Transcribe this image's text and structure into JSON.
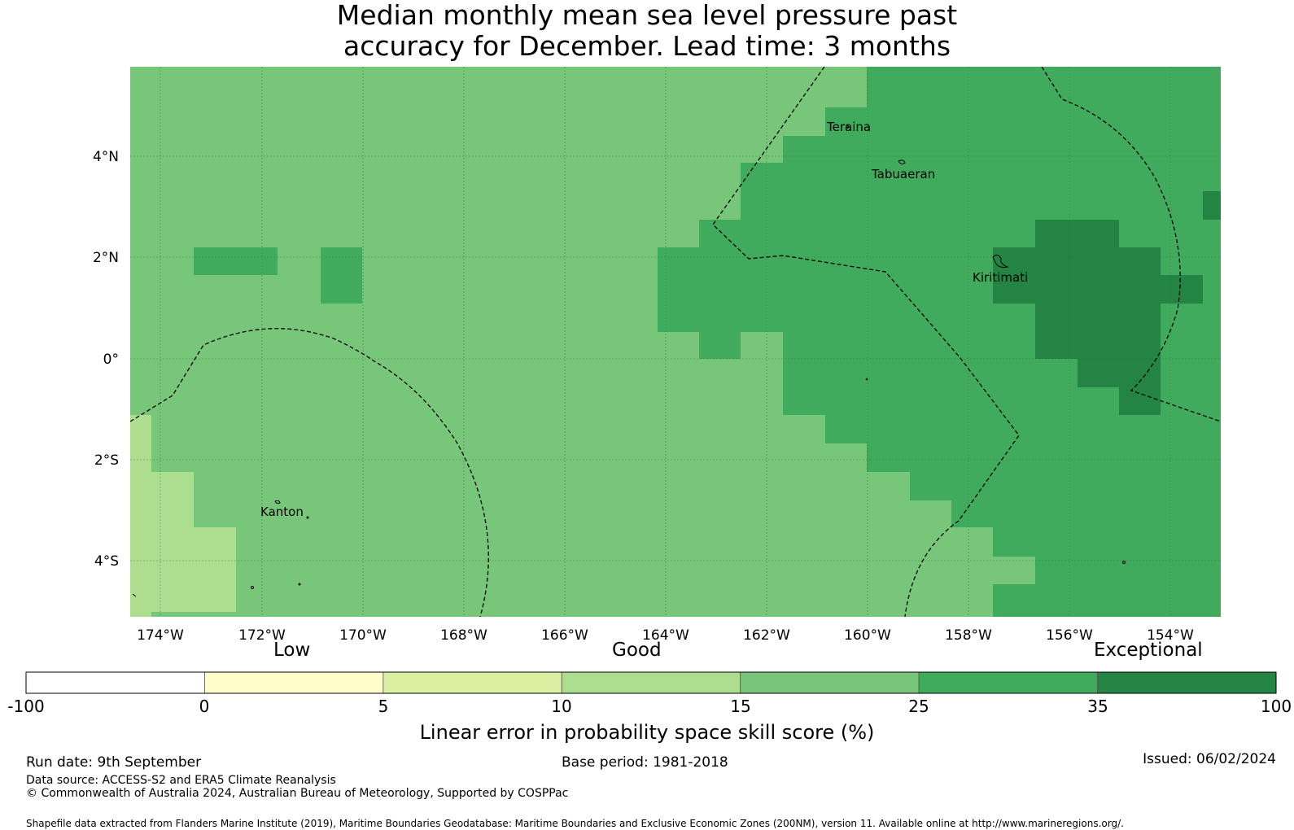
{
  "title": {
    "line1": "Median monthly mean sea level pressure past",
    "line2": "accuracy for December. Lead time: 3 months"
  },
  "map": {
    "lat_labels": [
      "4°N",
      "2°N",
      "0°",
      "2°S",
      "4°S"
    ],
    "lon_labels": [
      "174°W",
      "172°W",
      "170°W",
      "168°W",
      "166°W",
      "164°W",
      "162°W",
      "160°W",
      "158°W",
      "156°W",
      "154°W"
    ],
    "places": [
      "Teraina",
      "Tabuaeran",
      "Kiritimati",
      "Kanton"
    ]
  },
  "legend": {
    "categories": [
      "Low",
      "Good",
      "Exceptional"
    ],
    "ticks": [
      "-100",
      "0",
      "5",
      "10",
      "15",
      "25",
      "35",
      "100"
    ],
    "colors": [
      "#ffffff",
      "#ffffcc",
      "#d9f0a3",
      "#addd8e",
      "#78c679",
      "#41ab5d",
      "#238443"
    ],
    "title": "Linear error in probability space skill score (%)"
  },
  "footer": {
    "run_date": "Run date: 9th September",
    "base_period": "Base period: 1981-2018",
    "issued": "Issued: 06/02/2024",
    "data_source": "Data source: ACCESS-S2 and ERA5 Climate Reanalysis",
    "copyright": "© Commonwealth of Australia 2024, Australian Bureau of Meteorology, Supported by COSPPac",
    "shapefile": "Shapefile data extracted from Flanders Marine Institute (2019), Maritime Boundaries Geodatabase: Maritime Boundaries and Exclusive Economic Zones (200NM), version 11. Available online at http://www.marineregions.org/."
  }
}
